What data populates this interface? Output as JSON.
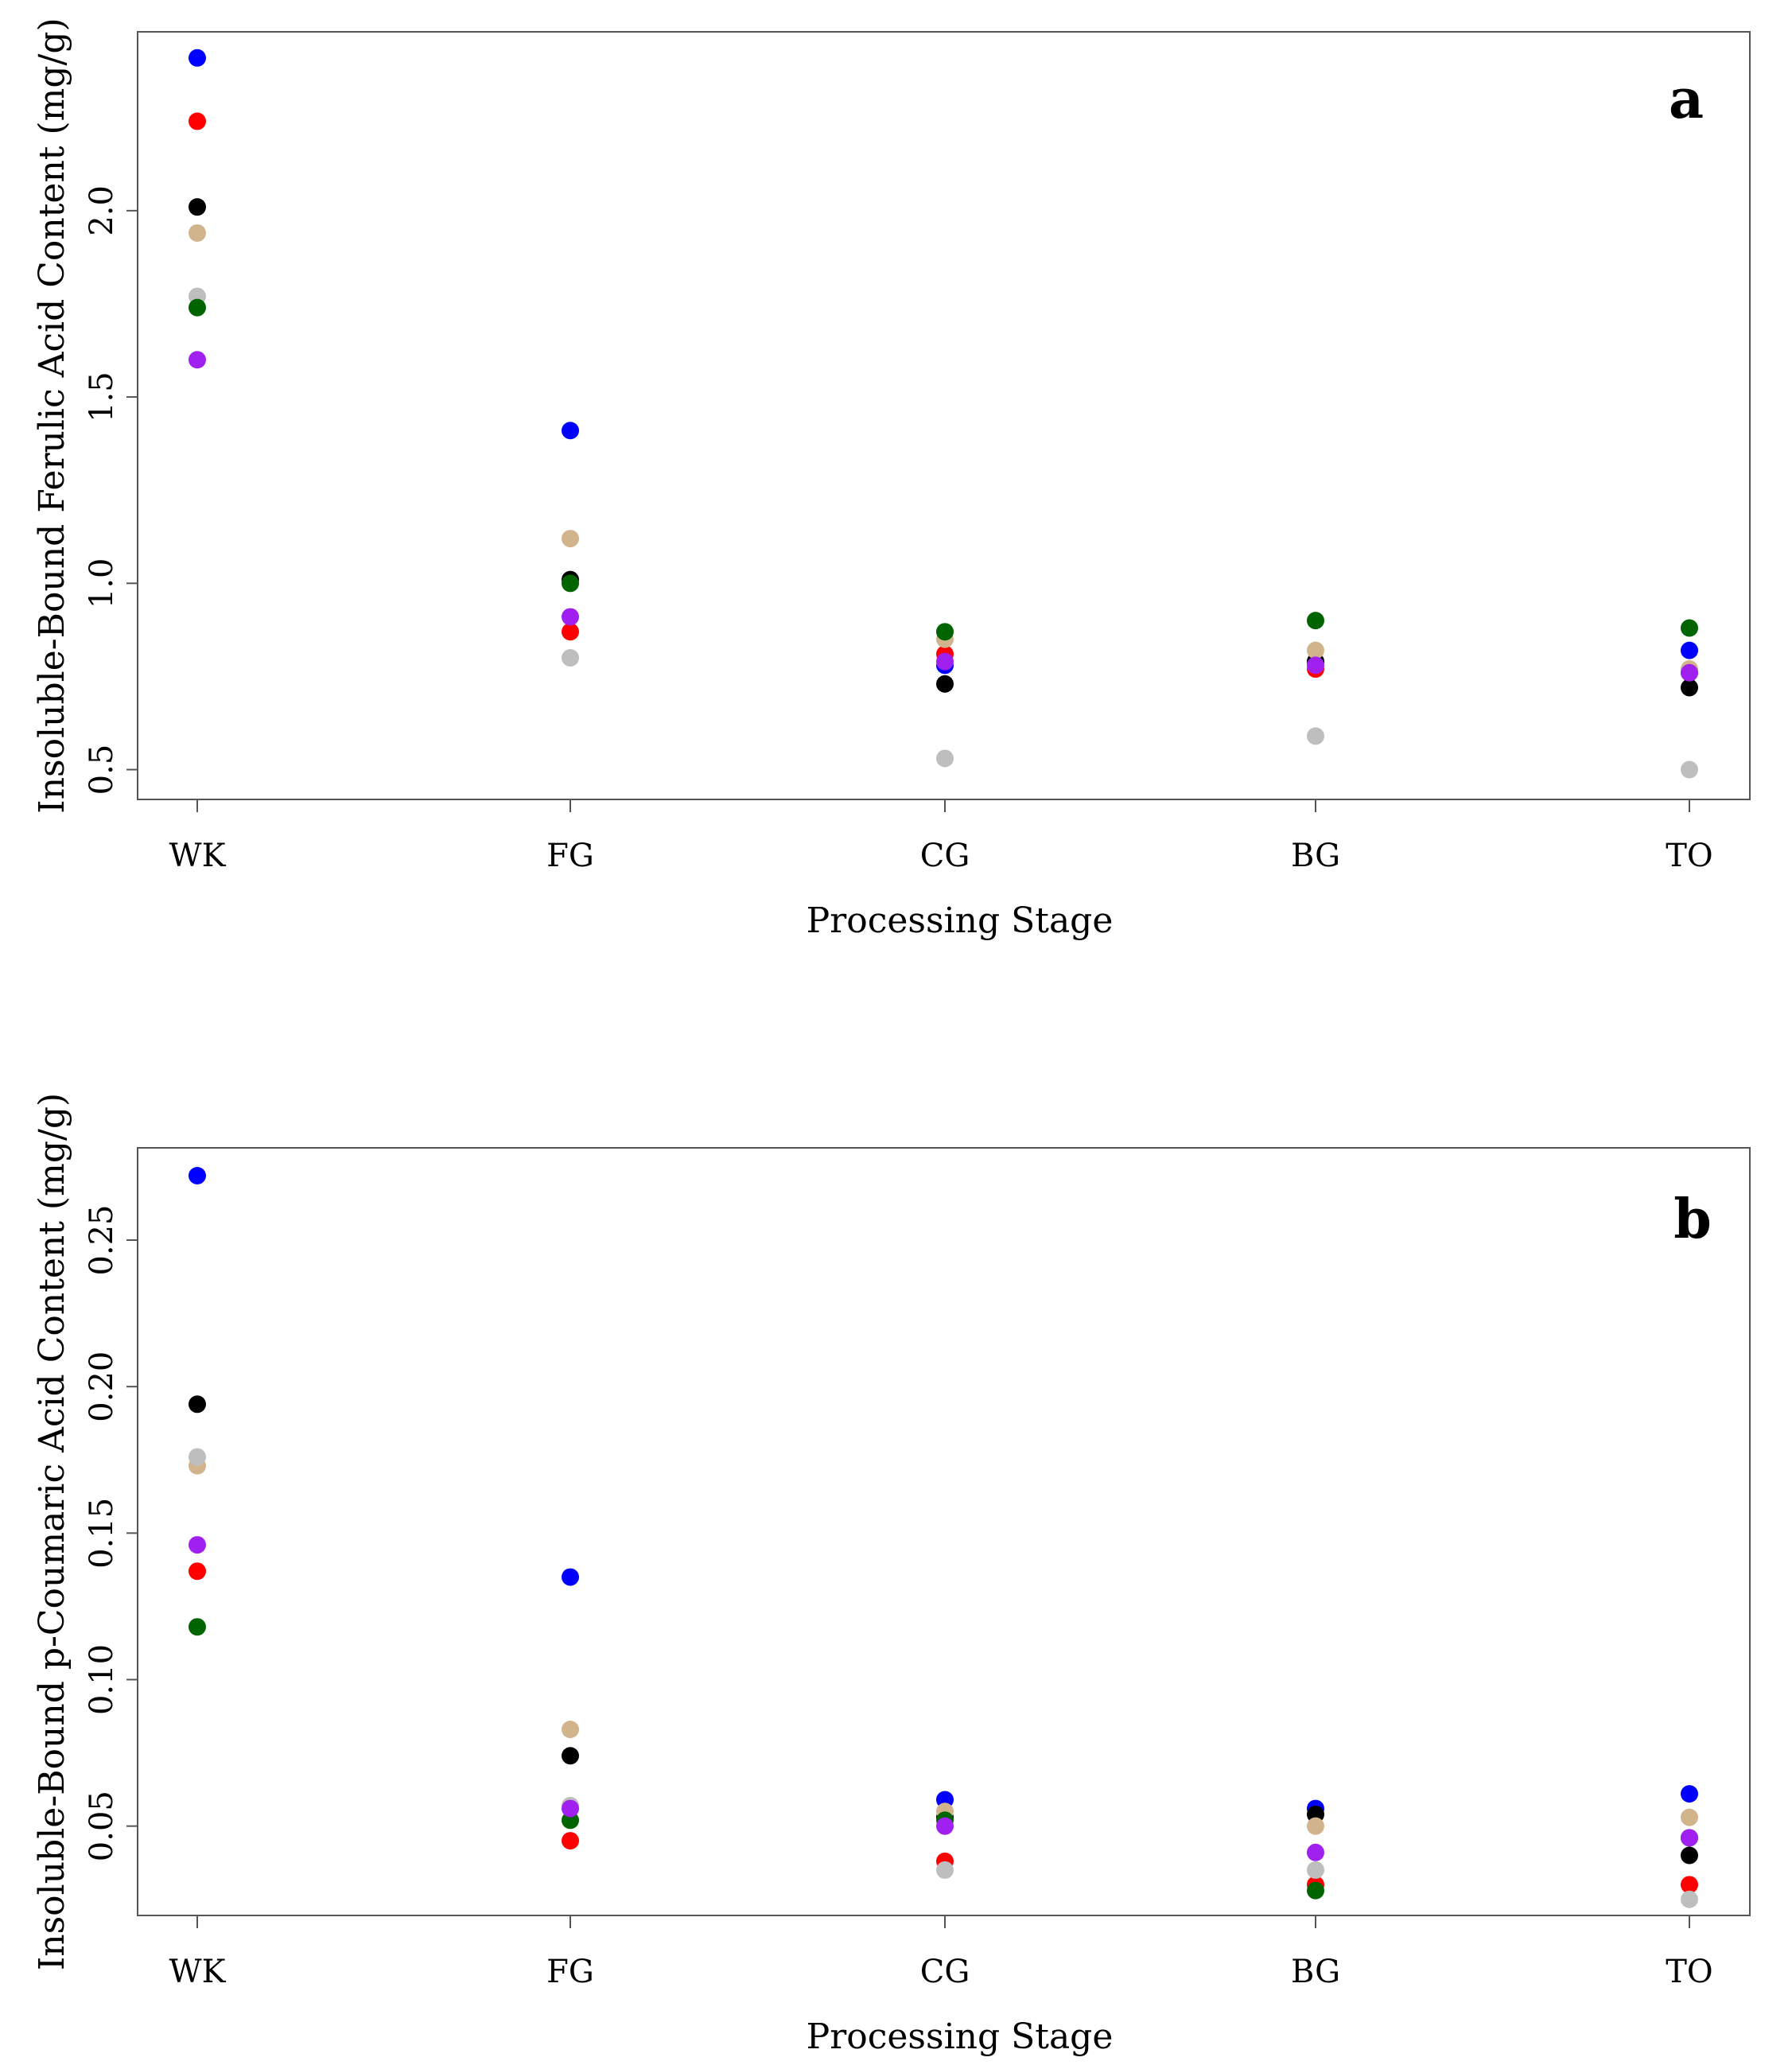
{
  "chart_data": [
    {
      "type": "scatter",
      "panel_label": "a",
      "xlabel": "Processing Stage",
      "ylabel": "Insoluble-Bound Ferulic Acid Content (mg/g)",
      "categories": [
        "WK",
        "FG",
        "CG",
        "BG",
        "TO"
      ],
      "ylim": [
        0.42,
        2.48
      ],
      "yticks": [
        "0.5",
        "1.0",
        "1.5",
        "2.0"
      ],
      "grid": false,
      "series": [
        {
          "color": "#0000ff",
          "values": [
            2.41,
            1.41,
            0.78,
            0.79,
            0.82
          ]
        },
        {
          "color": "#ff0000",
          "values": [
            2.24,
            0.87,
            0.81,
            0.77,
            0.76
          ]
        },
        {
          "color": "#000000",
          "values": [
            2.01,
            1.01,
            0.73,
            0.79,
            0.72
          ]
        },
        {
          "color": "#d2b48c",
          "values": [
            1.94,
            1.12,
            0.85,
            0.82,
            0.77
          ]
        },
        {
          "color": "#bebebe",
          "values": [
            1.77,
            0.8,
            0.53,
            0.59,
            0.5
          ]
        },
        {
          "color": "#006400",
          "values": [
            1.74,
            1.0,
            0.87,
            0.9,
            0.88
          ]
        },
        {
          "color": "#a020f0",
          "values": [
            1.6,
            0.91,
            0.79,
            0.78,
            0.76
          ]
        }
      ]
    },
    {
      "type": "scatter",
      "panel_label": "b",
      "xlabel": "Processing Stage",
      "ylabel": "Insoluble-Bound p-Coumaric  Acid Content (mg/g)",
      "categories": [
        "WK",
        "FG",
        "CG",
        "BG",
        "TO"
      ],
      "ylim": [
        0.0195,
        0.2815
      ],
      "yticks": [
        "0.05",
        "0.10",
        "0.15",
        "0.20",
        "0.25"
      ],
      "grid": false,
      "series": [
        {
          "color": "#0000ff",
          "values": [
            0.272,
            0.135,
            0.059,
            0.056,
            0.061
          ]
        },
        {
          "color": "#ff0000",
          "values": [
            0.137,
            0.045,
            0.038,
            0.03,
            0.03
          ]
        },
        {
          "color": "#000000",
          "values": [
            0.194,
            0.074,
            0.053,
            0.054,
            0.04
          ]
        },
        {
          "color": "#d2b48c",
          "values": [
            0.173,
            0.083,
            0.055,
            0.05,
            0.053
          ]
        },
        {
          "color": "#bebebe",
          "values": [
            0.176,
            0.057,
            0.035,
            0.035,
            0.025
          ]
        },
        {
          "color": "#006400",
          "values": [
            0.118,
            0.052,
            0.052,
            0.028,
            0.046
          ]
        },
        {
          "color": "#a020f0",
          "values": [
            0.146,
            0.056,
            0.05,
            0.041,
            0.046
          ]
        }
      ]
    }
  ]
}
